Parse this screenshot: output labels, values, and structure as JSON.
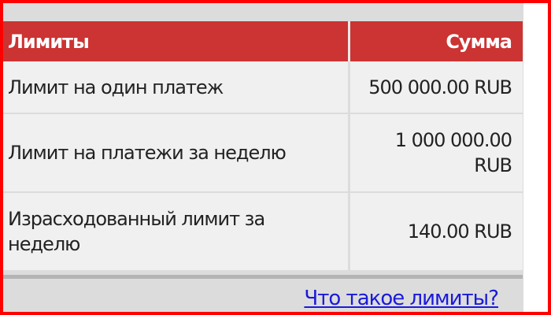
{
  "table": {
    "headers": [
      "Лимиты",
      "Сумма"
    ],
    "rows": [
      {
        "label": "Лимит на один платеж",
        "value": "500 000.00 RUB"
      },
      {
        "label": "Лимит на платежи за неделю",
        "value": "1 000 000.00 RUB"
      },
      {
        "label": "Израсходованный лимит за неделю",
        "value": "140.00 RUB"
      }
    ]
  },
  "link": "Что такое лимиты?",
  "colors": {
    "header": "#cc3333",
    "frame": "#ff0000",
    "link": "#1a1adb"
  }
}
